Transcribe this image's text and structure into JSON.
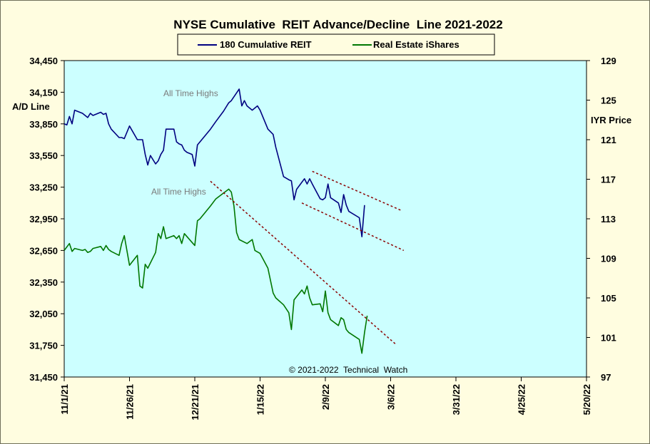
{
  "chart_data": {
    "type": "line",
    "title": "NYSE Cumulative  REIT Advance/Decline  Line 2021-2022",
    "ylabel_left": "A/D Line",
    "ylabel_right": "IYR Price",
    "ylim_left": [
      31450,
      34450
    ],
    "ylim_right": [
      97,
      129
    ],
    "yticks_left": [
      "34,450",
      "34,150",
      "33,850",
      "33,550",
      "33,250",
      "32,950",
      "32,650",
      "32,350",
      "32,050",
      "31,750",
      "31,450"
    ],
    "yticks_right": [
      "129",
      "125",
      "121",
      "117",
      "113",
      "109",
      "105",
      "101",
      "97"
    ],
    "xticks": [
      "11/1/21",
      "11/26/21",
      "12/21/21",
      "1/15/22",
      "2/9/22",
      "3/6/22",
      "3/31/22",
      "4/25/22",
      "5/20/22"
    ],
    "xlim": [
      "2021-11-01",
      "2022-05-20"
    ],
    "legend_position": "top",
    "background_color": "#ccffff",
    "colors": {
      "ad_line": "#000080",
      "iyr": "#007700",
      "trend": "#8b0000",
      "plot_bg": "#ccffff",
      "frame_bg": "#fffde0"
    },
    "annotations": [
      "All Time Highs",
      "All Time Highs"
    ],
    "copyright": "© 2021-2022  Technical  Watch",
    "series": [
      {
        "name": "180 Cumulative REIT",
        "axis": "left",
        "points": [
          [
            "2021-11-01",
            33850
          ],
          [
            "2021-11-02",
            33840
          ],
          [
            "2021-11-03",
            33920
          ],
          [
            "2021-11-04",
            33850
          ],
          [
            "2021-11-05",
            33980
          ],
          [
            "2021-11-08",
            33950
          ],
          [
            "2021-11-09",
            33930
          ],
          [
            "2021-11-10",
            33910
          ],
          [
            "2021-11-11",
            33950
          ],
          [
            "2021-11-12",
            33930
          ],
          [
            "2021-11-15",
            33960
          ],
          [
            "2021-11-16",
            33940
          ],
          [
            "2021-11-17",
            33950
          ],
          [
            "2021-11-18",
            33850
          ],
          [
            "2021-11-19",
            33800
          ],
          [
            "2021-11-22",
            33720
          ],
          [
            "2021-11-23",
            33720
          ],
          [
            "2021-11-24",
            33710
          ],
          [
            "2021-11-26",
            33830
          ],
          [
            "2021-11-29",
            33700
          ],
          [
            "2021-11-30",
            33700
          ],
          [
            "2021-12-01",
            33700
          ],
          [
            "2021-12-02",
            33560
          ],
          [
            "2021-12-03",
            33460
          ],
          [
            "2021-12-04",
            33550
          ],
          [
            "2021-12-06",
            33470
          ],
          [
            "2021-12-07",
            33500
          ],
          [
            "2021-12-08",
            33560
          ],
          [
            "2021-12-09",
            33600
          ],
          [
            "2021-12-10",
            33800
          ],
          [
            "2021-12-13",
            33800
          ],
          [
            "2021-12-14",
            33680
          ],
          [
            "2021-12-15",
            33660
          ],
          [
            "2021-12-16",
            33650
          ],
          [
            "2021-12-17",
            33600
          ],
          [
            "2021-12-18",
            33580
          ],
          [
            "2021-12-20",
            33560
          ],
          [
            "2021-12-21",
            33450
          ],
          [
            "2021-12-22",
            33650
          ],
          [
            "2021-12-27",
            33800
          ],
          [
            "2021-12-29",
            33870
          ],
          [
            "2022-01-01",
            33970
          ],
          [
            "2022-01-03",
            34050
          ],
          [
            "2022-01-04",
            34070
          ],
          [
            "2022-01-07",
            34180
          ],
          [
            "2022-01-08",
            34020
          ],
          [
            "2022-01-09",
            34070
          ],
          [
            "2022-01-10",
            34020
          ],
          [
            "2022-01-12",
            33980
          ],
          [
            "2022-01-14",
            34020
          ],
          [
            "2022-01-15",
            33980
          ],
          [
            "2022-01-18",
            33800
          ],
          [
            "2022-01-20",
            33750
          ],
          [
            "2022-01-21",
            33630
          ],
          [
            "2022-01-24",
            33350
          ],
          [
            "2022-01-26",
            33320
          ],
          [
            "2022-01-27",
            33310
          ],
          [
            "2022-01-28",
            33130
          ],
          [
            "2022-01-29",
            33230
          ],
          [
            "2022-02-01",
            33330
          ],
          [
            "2022-02-02",
            33280
          ],
          [
            "2022-02-03",
            33330
          ],
          [
            "2022-02-04",
            33280
          ],
          [
            "2022-02-07",
            33140
          ],
          [
            "2022-02-08",
            33130
          ],
          [
            "2022-02-09",
            33150
          ],
          [
            "2022-02-10",
            33280
          ],
          [
            "2022-02-11",
            33150
          ],
          [
            "2022-02-14",
            33100
          ],
          [
            "2022-02-15",
            33010
          ],
          [
            "2022-02-16",
            33180
          ],
          [
            "2022-02-17",
            33080
          ],
          [
            "2022-02-18",
            33020
          ],
          [
            "2022-02-22",
            32960
          ],
          [
            "2022-02-23",
            32780
          ],
          [
            "2022-02-24",
            33080
          ]
        ]
      },
      {
        "name": "Real Estate iShares",
        "axis": "right",
        "points": [
          [
            "2021-11-01",
            109.8
          ],
          [
            "2021-11-03",
            110.5
          ],
          [
            "2021-11-04",
            109.7
          ],
          [
            "2021-11-05",
            110.0
          ],
          [
            "2021-11-08",
            109.8
          ],
          [
            "2021-11-09",
            109.9
          ],
          [
            "2021-11-10",
            109.6
          ],
          [
            "2021-11-11",
            109.7
          ],
          [
            "2021-11-12",
            110.0
          ],
          [
            "2021-11-15",
            110.2
          ],
          [
            "2021-11-16",
            109.8
          ],
          [
            "2021-11-17",
            110.3
          ],
          [
            "2021-11-18",
            109.9
          ],
          [
            "2021-11-19",
            109.7
          ],
          [
            "2021-11-22",
            109.3
          ],
          [
            "2021-11-23",
            110.5
          ],
          [
            "2021-11-24",
            111.3
          ],
          [
            "2021-11-26",
            108.3
          ],
          [
            "2021-11-29",
            109.3
          ],
          [
            "2021-11-30",
            106.2
          ],
          [
            "2021-12-01",
            106.0
          ],
          [
            "2021-12-02",
            108.4
          ],
          [
            "2021-12-03",
            108.0
          ],
          [
            "2021-12-06",
            109.6
          ],
          [
            "2021-12-07",
            111.5
          ],
          [
            "2021-12-08",
            111.0
          ],
          [
            "2021-12-09",
            112.2
          ],
          [
            "2021-12-10",
            111.0
          ],
          [
            "2021-12-13",
            111.3
          ],
          [
            "2021-12-14",
            111.0
          ],
          [
            "2021-12-15",
            111.3
          ],
          [
            "2021-12-16",
            110.5
          ],
          [
            "2021-12-17",
            111.5
          ],
          [
            "2021-12-20",
            110.6
          ],
          [
            "2021-12-21",
            110.3
          ],
          [
            "2021-12-22",
            112.8
          ],
          [
            "2021-12-23",
            113.0
          ],
          [
            "2021-12-27",
            114.3
          ],
          [
            "2021-12-29",
            115.0
          ],
          [
            "2021-12-30",
            115.2
          ],
          [
            "2022-01-03",
            116.0
          ],
          [
            "2022-01-04",
            115.7
          ],
          [
            "2022-01-05",
            114.3
          ],
          [
            "2022-01-06",
            111.6
          ],
          [
            "2022-01-07",
            110.9
          ],
          [
            "2022-01-10",
            110.5
          ],
          [
            "2022-01-12",
            110.9
          ],
          [
            "2022-01-13",
            109.8
          ],
          [
            "2022-01-15",
            109.5
          ],
          [
            "2022-01-18",
            108.0
          ],
          [
            "2022-01-20",
            105.5
          ],
          [
            "2022-01-21",
            105.0
          ],
          [
            "2022-01-24",
            104.3
          ],
          [
            "2022-01-26",
            103.5
          ],
          [
            "2022-01-27",
            101.8
          ],
          [
            "2022-01-28",
            104.8
          ],
          [
            "2022-01-31",
            105.8
          ],
          [
            "2022-02-01",
            105.4
          ],
          [
            "2022-02-02",
            106.2
          ],
          [
            "2022-02-03",
            105.0
          ],
          [
            "2022-02-04",
            104.3
          ],
          [
            "2022-02-07",
            104.4
          ],
          [
            "2022-02-08",
            103.6
          ],
          [
            "2022-02-09",
            105.7
          ],
          [
            "2022-02-10",
            103.5
          ],
          [
            "2022-02-11",
            102.8
          ],
          [
            "2022-02-14",
            102.2
          ],
          [
            "2022-02-15",
            103.0
          ],
          [
            "2022-02-16",
            102.8
          ],
          [
            "2022-02-17",
            101.8
          ],
          [
            "2022-02-18",
            101.5
          ],
          [
            "2022-02-22",
            100.8
          ],
          [
            "2022-02-23",
            99.4
          ],
          [
            "2022-02-24",
            101.5
          ],
          [
            "2022-02-25",
            103.2
          ]
        ]
      }
    ],
    "trendlines": [
      {
        "axis": "left",
        "points": [
          [
            "2022-02-04",
            33400
          ],
          [
            "2022-03-10",
            33030
          ]
        ]
      },
      {
        "axis": "left",
        "points": [
          [
            "2022-01-31",
            33100
          ],
          [
            "2022-03-11",
            32650
          ]
        ]
      },
      {
        "axis": "right",
        "points": [
          [
            "2021-12-27",
            116.8
          ],
          [
            "2022-03-08",
            100.3
          ]
        ]
      }
    ]
  }
}
